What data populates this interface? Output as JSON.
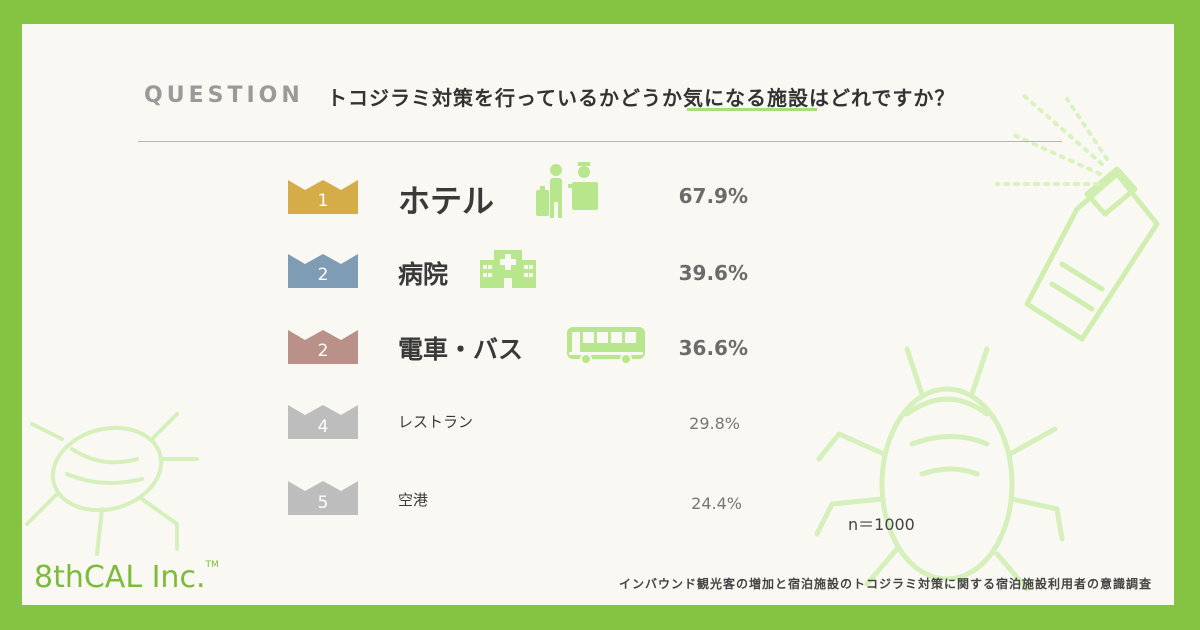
{
  "header": {
    "question_label": "QUESTION",
    "question_text": "トコジラミ対策を行っているかどうか気になる施設はどれですか？"
  },
  "colors": {
    "background": "#85c443",
    "card": "#f9f8f3",
    "rank1": "#d4ac48",
    "rank2_hospital": "#7f9cb5",
    "rank2_train": "#b99188",
    "rank_other": "#bdbdbd",
    "icon_green": "#b8e68c"
  },
  "chart_data": {
    "type": "table",
    "unit": "%",
    "rows": [
      {
        "rank": "1",
        "label": "ホテル",
        "value": 67.9,
        "display": "67.9%",
        "icon": "hotel-icon",
        "highlight": true
      },
      {
        "rank": "2",
        "label": "病院",
        "value": 39.6,
        "display": "39.6%",
        "icon": "hospital-icon",
        "highlight": true
      },
      {
        "rank": "2",
        "label": "電車・バス",
        "value": 36.6,
        "display": "36.6%",
        "icon": "bus-icon",
        "highlight": true
      },
      {
        "rank": "4",
        "label": "レストラン",
        "value": 29.8,
        "display": "29.8%",
        "icon": "",
        "highlight": false
      },
      {
        "rank": "5",
        "label": "空港",
        "value": 24.4,
        "display": "24.4%",
        "icon": "",
        "highlight": false
      }
    ]
  },
  "sample": "n＝1000",
  "footer": {
    "logo": "8thCAL Inc.",
    "logo_tm": "TM",
    "source": "インバウンド観光客の増加と宿泊施設のトコジラミ対策に関する宿泊施設利用者の意識調査"
  }
}
